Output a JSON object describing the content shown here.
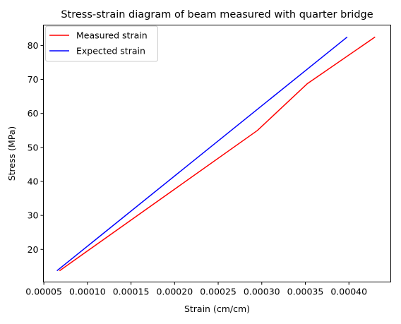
{
  "chart_data": {
    "type": "line",
    "title": "Stress-strain diagram of beam measured with quarter bridge",
    "xlabel": "Strain (cm/cm)",
    "ylabel": "Stress (MPa)",
    "xlim": [
      4.95e-05,
      0.000448
    ],
    "ylim": [
      10.4,
      86.0
    ],
    "xticks": [
      "0.00005",
      "0.00010",
      "0.00015",
      "0.00020",
      "0.00025",
      "0.00030",
      "0.00035",
      "0.00040"
    ],
    "yticks": [
      "20",
      "30",
      "40",
      "50",
      "60",
      "70",
      "80"
    ],
    "grid": false,
    "legend": {
      "position": "upper-left"
    },
    "series": [
      {
        "name": "Measured strain",
        "color": "#ff0000",
        "x": [
          6.8e-05,
          0.000295,
          0.000352,
          0.00043
        ],
        "y": [
          13.7,
          55.0,
          68.7,
          82.5
        ]
      },
      {
        "name": "Expected strain",
        "color": "#0000ff",
        "x": [
          6.5e-05,
          0.000398
        ],
        "y": [
          13.7,
          82.5
        ]
      }
    ]
  }
}
